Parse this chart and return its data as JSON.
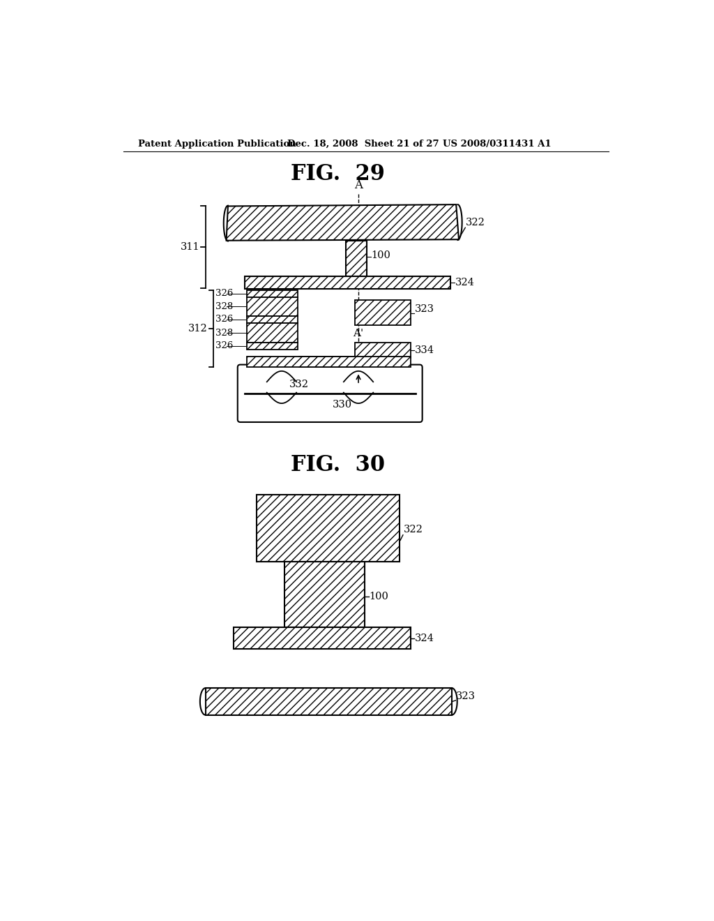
{
  "bg_color": "#ffffff",
  "header_text": "Patent Application Publication",
  "header_date": "Dec. 18, 2008  Sheet 21 of 27",
  "header_patent": "US 2008/0311431 A1",
  "fig29_title": "FIG.  29",
  "fig30_title": "FIG.  30",
  "line_color": "#000000"
}
